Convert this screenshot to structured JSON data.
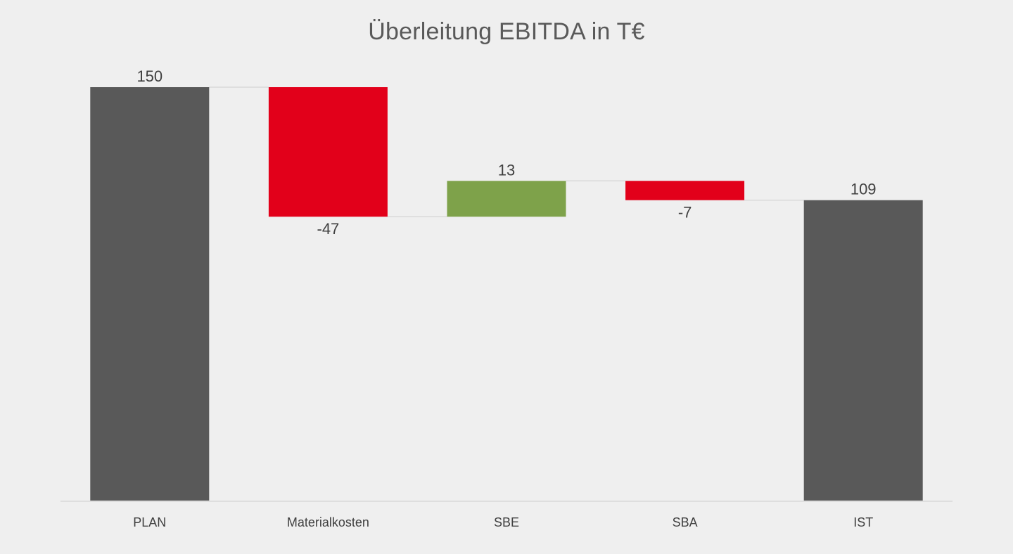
{
  "chart_data": {
    "type": "waterfall",
    "title": "Überleitung EBITDA in T€",
    "categories": [
      "PLAN",
      "Materialkosten",
      "SBE",
      "SBA",
      "IST"
    ],
    "values": [
      150,
      -47,
      13,
      -7,
      109
    ],
    "kinds": [
      "total",
      "delta",
      "delta",
      "delta",
      "total"
    ],
    "labels": [
      "150",
      "-47",
      "13",
      "-7",
      "109"
    ],
    "ylim": [
      0,
      150
    ],
    "grid": false,
    "legend": "none",
    "colors": {
      "total": "#595959",
      "increase": "#7ea24a",
      "decrease": "#e2001a",
      "connector": "#d9d9d9",
      "axis": "#d9d9d9"
    }
  }
}
